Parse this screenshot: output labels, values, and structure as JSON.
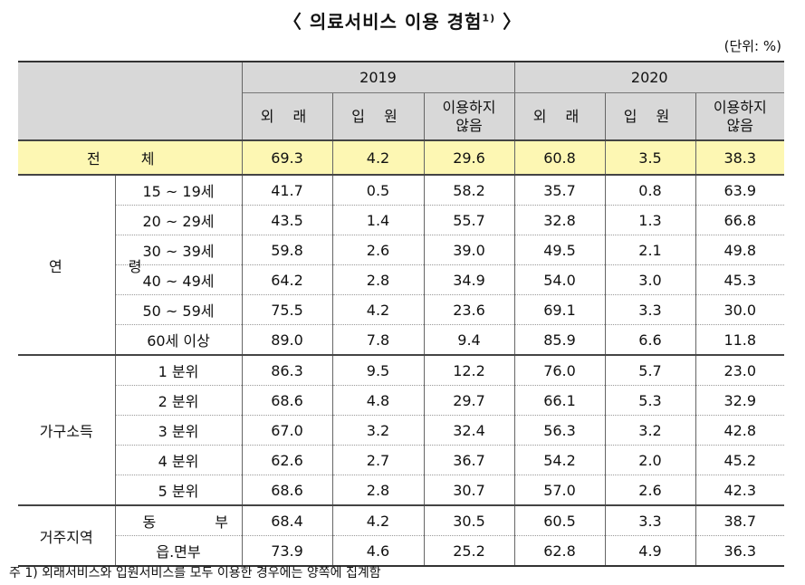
{
  "title": "〈 의료서비스 이용 경험",
  "title_sup": "1)",
  "title_close": "〉",
  "unit": "(단위: %)",
  "header": {
    "year1": "2019",
    "year2": "2020",
    "cols": [
      "외 래",
      "입 원",
      "이용하지",
      "않음"
    ]
  },
  "total": {
    "label": "전 체",
    "values": [
      "69.3",
      "4.2",
      "29.6",
      "60.8",
      "3.5",
      "38.3"
    ]
  },
  "groups": [
    {
      "name": "연 령",
      "rows": [
        {
          "label": "15 ~ 19세",
          "values": [
            "41.7",
            "0.5",
            "58.2",
            "35.7",
            "0.8",
            "63.9"
          ]
        },
        {
          "label": "20 ~ 29세",
          "values": [
            "43.5",
            "1.4",
            "55.7",
            "32.8",
            "1.3",
            "66.8"
          ]
        },
        {
          "label": "30 ~ 39세",
          "values": [
            "59.8",
            "2.6",
            "39.0",
            "49.5",
            "2.1",
            "49.8"
          ]
        },
        {
          "label": "40 ~ 49세",
          "values": [
            "64.2",
            "2.8",
            "34.9",
            "54.0",
            "3.0",
            "45.3"
          ]
        },
        {
          "label": "50 ~ 59세",
          "values": [
            "75.5",
            "4.2",
            "23.6",
            "69.1",
            "3.3",
            "30.0"
          ]
        },
        {
          "label": "60세 이상",
          "values": [
            "89.0",
            "7.8",
            "9.4",
            "85.9",
            "6.6",
            "11.8"
          ]
        }
      ]
    },
    {
      "name": "가구소득",
      "rows": [
        {
          "label": "1 분위",
          "values": [
            "86.3",
            "9.5",
            "12.2",
            "76.0",
            "5.7",
            "23.0"
          ]
        },
        {
          "label": "2 분위",
          "values": [
            "68.6",
            "4.8",
            "29.7",
            "66.1",
            "5.3",
            "32.9"
          ]
        },
        {
          "label": "3 분위",
          "values": [
            "67.0",
            "3.2",
            "32.4",
            "56.3",
            "3.2",
            "42.8"
          ]
        },
        {
          "label": "4 분위",
          "values": [
            "62.6",
            "2.7",
            "36.7",
            "54.2",
            "2.0",
            "45.2"
          ]
        },
        {
          "label": "5 분위",
          "values": [
            "68.6",
            "2.8",
            "30.7",
            "57.0",
            "2.6",
            "42.3"
          ]
        }
      ]
    },
    {
      "name": "거주지역",
      "rows": [
        {
          "label": "동 부",
          "values": [
            "68.4",
            "4.2",
            "30.5",
            "60.5",
            "3.3",
            "38.7"
          ]
        },
        {
          "label": "읍.면부",
          "values": [
            "73.9",
            "4.6",
            "25.2",
            "62.8",
            "4.9",
            "36.3"
          ]
        }
      ]
    }
  ],
  "note": "주 1) 외래서비스와 입원서비스를 모두 이용한 경우에는 양쪽에 집계함"
}
